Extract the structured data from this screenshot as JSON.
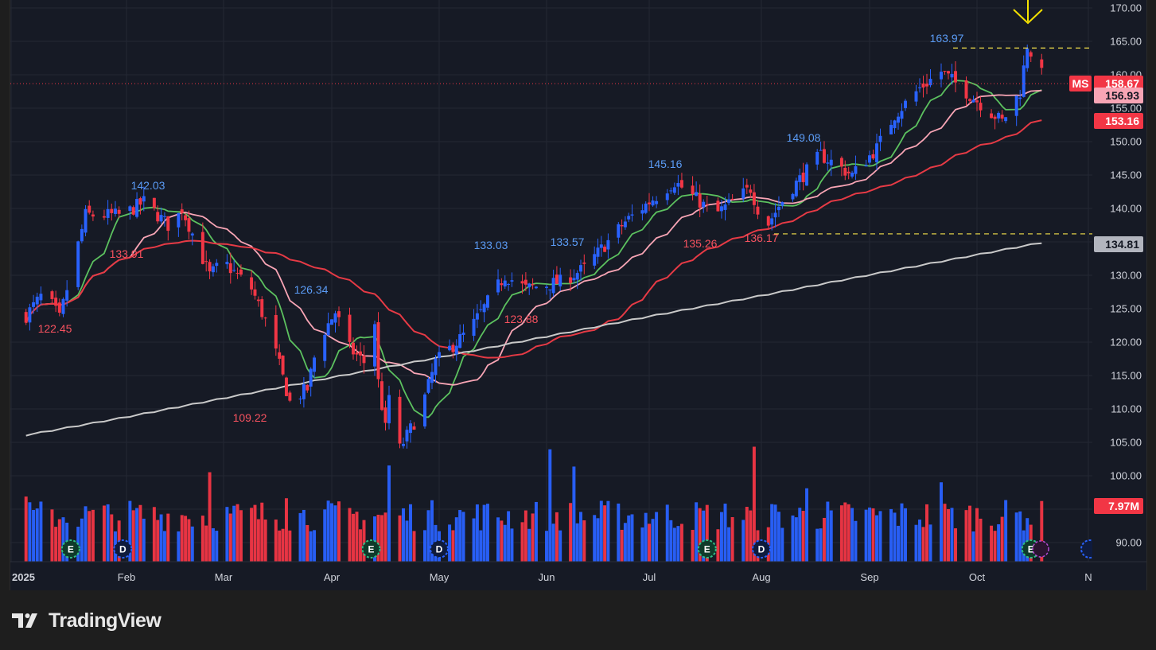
{
  "chart_data": {
    "type": "candlestick",
    "symbol": "MS",
    "x_ticks": [
      "2025",
      "Feb",
      "Mar",
      "Apr",
      "May",
      "Jun",
      "Jul",
      "Aug",
      "Sep",
      "Oct",
      "N"
    ],
    "y_ticks": [
      "170.00",
      "165.00",
      "160.00",
      "155.00",
      "150.00",
      "145.00",
      "140.00",
      "135.00",
      "130.00",
      "125.00",
      "120.00",
      "115.00",
      "110.00",
      "105.00",
      "100.00",
      "95.00",
      "90.00"
    ],
    "ylim": [
      86.5,
      171.5
    ],
    "price_badges": [
      {
        "label": "MS",
        "value": "158.67",
        "color": "#f23645"
      },
      {
        "value": "156.93",
        "color": "#f8a5b5"
      },
      {
        "value": "153.16",
        "color": "#f23645"
      },
      {
        "value": "134.81",
        "color": "#b2b5be"
      },
      {
        "value": "7.97M",
        "color": "#f23645"
      }
    ],
    "annotations": [
      {
        "text": "122.45",
        "kind": "low"
      },
      {
        "text": "142.03",
        "kind": "high"
      },
      {
        "text": "133.91",
        "kind": "low"
      },
      {
        "text": "109.22",
        "kind": "low"
      },
      {
        "text": "126.34",
        "kind": "high"
      },
      {
        "text": "133.03",
        "kind": "high"
      },
      {
        "text": "123.88",
        "kind": "low"
      },
      {
        "text": "133.57",
        "kind": "high"
      },
      {
        "text": "145.16",
        "kind": "high"
      },
      {
        "text": "135.26",
        "kind": "low"
      },
      {
        "text": "149.08",
        "kind": "high"
      },
      {
        "text": "136.17",
        "kind": "low"
      },
      {
        "text": "163.97",
        "kind": "high"
      }
    ],
    "levels": [
      164.0,
      136.2
    ],
    "events": [
      {
        "type": "E",
        "month": "Jan",
        "day": 16
      },
      {
        "type": "D",
        "month": "Jan",
        "day": 30
      },
      {
        "type": "E",
        "month": "Apr",
        "day": 11
      },
      {
        "type": "D",
        "month": "Apr",
        "day": 30
      },
      {
        "type": "E",
        "month": "Jul",
        "day": 16
      },
      {
        "type": "D",
        "month": "Jul",
        "day": 31
      },
      {
        "type": "E",
        "month": "Oct",
        "day": 15
      }
    ],
    "moving_averages": [
      {
        "color": "#5cc15f",
        "period": "short"
      },
      {
        "color": "#f8a5b5",
        "period": "medium"
      },
      {
        "color": "#e63a45",
        "period": "long"
      },
      {
        "color": "#c9c9c9",
        "period": "longest"
      }
    ],
    "colors": {
      "up": "#2962ff",
      "down": "#f23645",
      "bg": "#161a25",
      "grid": "#242834",
      "level": "#f5e24a"
    }
  },
  "brand": {
    "name": "TradingView"
  }
}
